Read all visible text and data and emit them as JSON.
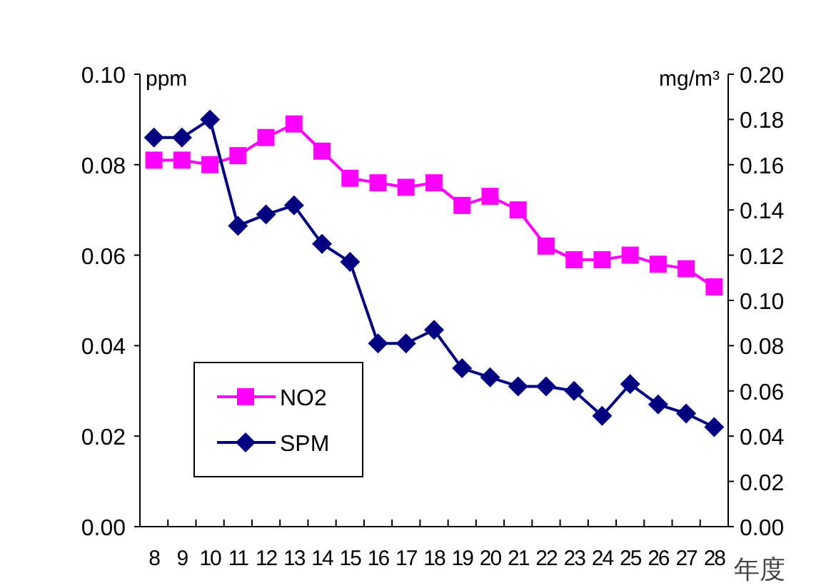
{
  "chart_data": {
    "type": "line",
    "xlabel": "年度",
    "ylabel": "ppm",
    "y2label": "mg/m³",
    "categories": [
      "8",
      "9",
      "10",
      "11",
      "12",
      "13",
      "14",
      "15",
      "16",
      "17",
      "18",
      "19",
      "20",
      "21",
      "22",
      "23",
      "24",
      "25",
      "26",
      "27",
      "28"
    ],
    "series": [
      {
        "name": "NO2",
        "color": "#ff00ff",
        "marker": "square",
        "axis": "y",
        "values": [
          0.081,
          0.081,
          0.08,
          0.082,
          0.086,
          0.089,
          0.083,
          0.077,
          0.076,
          0.075,
          0.076,
          0.071,
          0.073,
          0.07,
          0.062,
          0.059,
          0.059,
          0.06,
          0.058,
          0.057,
          0.053
        ]
      },
      {
        "name": "SPM",
        "color": "#000080",
        "marker": "diamond",
        "axis": "y2",
        "values": [
          0.172,
          0.172,
          0.18,
          0.133,
          0.138,
          0.142,
          0.125,
          0.117,
          0.081,
          0.081,
          0.087,
          0.07,
          0.066,
          0.062,
          0.062,
          0.06,
          0.049,
          0.063,
          0.054,
          0.05,
          0.044
        ]
      }
    ],
    "ylim": [
      0,
      0.1
    ],
    "yticks": [
      {
        "value": 0,
        "label": "0.00"
      },
      {
        "value": 0.02,
        "label": "0.02"
      },
      {
        "value": 0.04,
        "label": "0.04"
      },
      {
        "value": 0.06,
        "label": "0.06"
      },
      {
        "value": 0.08,
        "label": "0.08"
      },
      {
        "value": 0.1,
        "label": "0.10"
      }
    ],
    "y2lim": [
      0,
      0.2
    ],
    "y2ticks": [
      {
        "value": 0,
        "label": "0.00"
      },
      {
        "value": 0.02,
        "label": "0.02"
      },
      {
        "value": 0.04,
        "label": "0.04"
      },
      {
        "value": 0.06,
        "label": "0.06"
      },
      {
        "value": 0.08,
        "label": "0.08"
      },
      {
        "value": 0.1,
        "label": "0.10"
      },
      {
        "value": 0.12,
        "label": "0.12"
      },
      {
        "value": 0.14,
        "label": "0.14"
      },
      {
        "value": 0.16,
        "label": "0.16"
      },
      {
        "value": 0.18,
        "label": "0.18"
      },
      {
        "value": 0.2,
        "label": "0.20"
      }
    ],
    "grid": false,
    "legend": "bottom left",
    "line_style": "solid"
  }
}
